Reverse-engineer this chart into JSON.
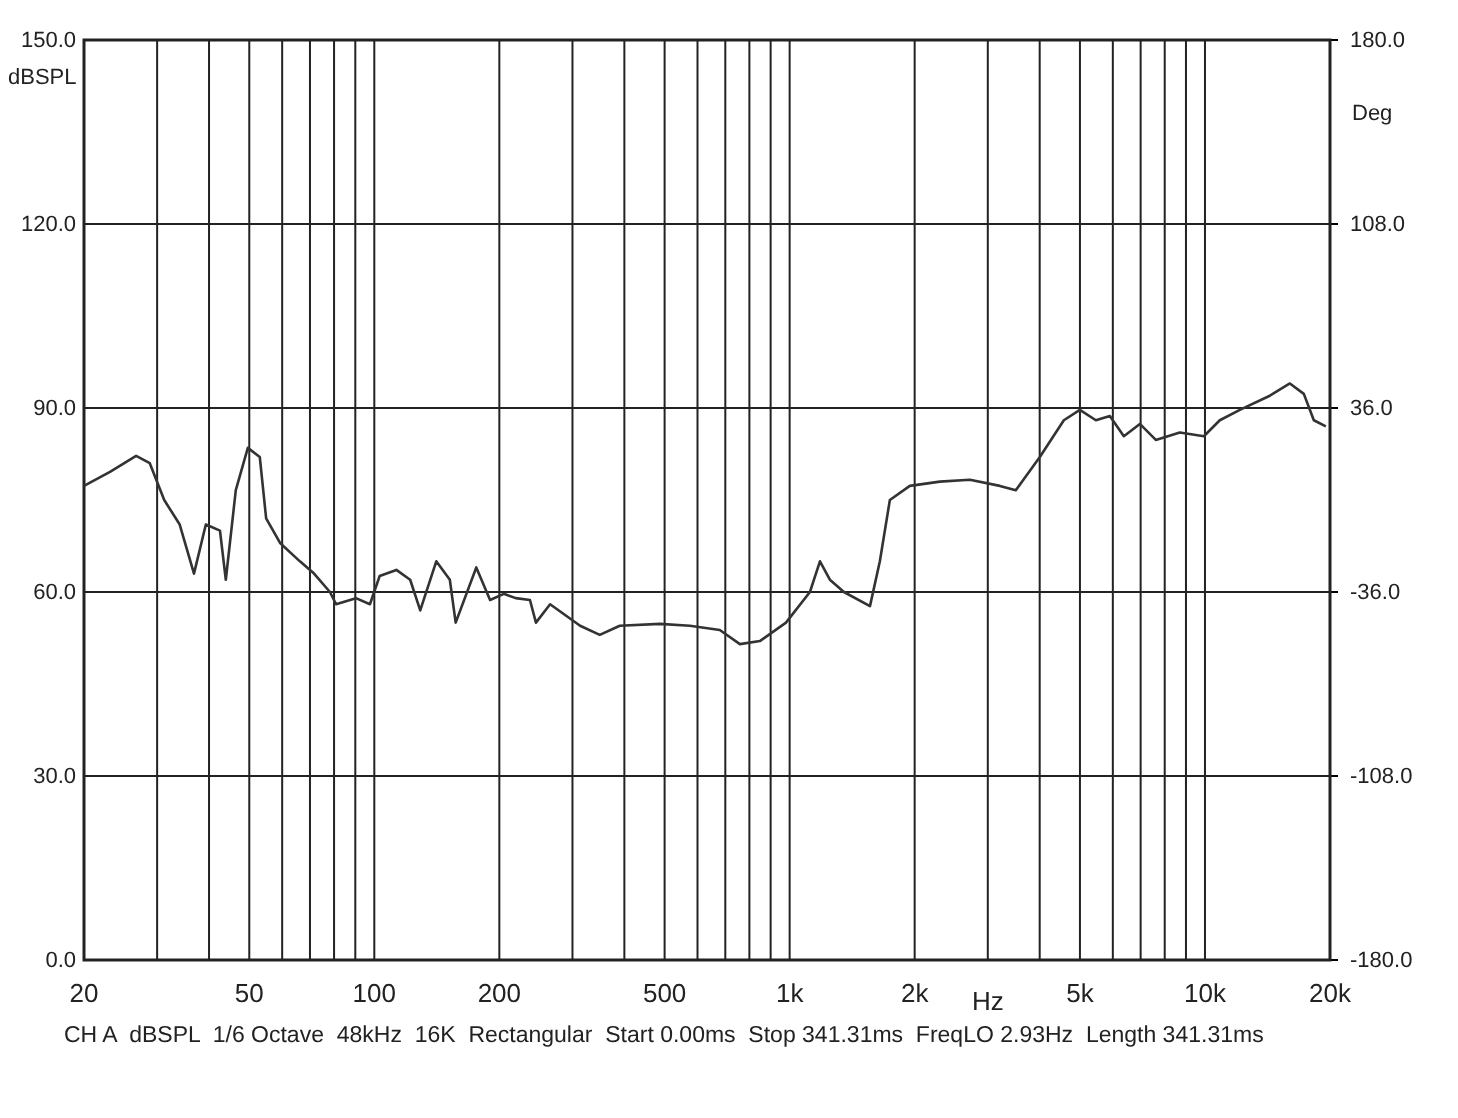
{
  "chart_data": {
    "type": "line",
    "xlabel": "Hz",
    "ylabel": "dBSPL",
    "y2label": "Deg",
    "log": "x",
    "grid": true,
    "marker": "none",
    "line_style": "solid",
    "xlim": [
      20,
      20000
    ],
    "ylim": [
      0,
      150
    ],
    "y2lim": [
      -180,
      180
    ],
    "xticks": [
      20,
      {
        "value": 30,
        "label": null
      },
      {
        "value": 40,
        "label": null
      },
      50,
      {
        "value": 60,
        "label": null
      },
      {
        "value": 70,
        "label": null
      },
      {
        "value": 80,
        "label": null
      },
      {
        "value": 90,
        "label": null
      },
      100,
      200,
      {
        "value": 300,
        "label": null
      },
      {
        "value": 400,
        "label": null
      },
      500,
      {
        "value": 600,
        "label": null
      },
      {
        "value": 700,
        "label": null
      },
      {
        "value": 800,
        "label": null
      },
      {
        "value": 900,
        "label": null
      },
      {
        "value": 1000,
        "label": "1k"
      },
      {
        "value": 2000,
        "label": "2k"
      },
      {
        "value": 3000,
        "label": null
      },
      {
        "value": 4000,
        "label": null
      },
      {
        "value": 5000,
        "label": "5k"
      },
      {
        "value": 6000,
        "label": null
      },
      {
        "value": 7000,
        "label": null
      },
      {
        "value": 8000,
        "label": null
      },
      {
        "value": 9000,
        "label": null
      },
      {
        "value": 10000,
        "label": "10k"
      },
      {
        "value": 20000,
        "label": "20k"
      }
    ],
    "yticks": [
      {
        "value": 0,
        "label": "0.0"
      },
      {
        "value": 30,
        "label": "30.0"
      },
      {
        "value": 60,
        "label": "60.0"
      },
      {
        "value": 90,
        "label": "90.0"
      },
      {
        "value": 120,
        "label": "120.0"
      },
      {
        "value": 150,
        "label": "150.0"
      }
    ],
    "y2ticks": [
      {
        "value": -180,
        "label": "-180.0"
      },
      {
        "value": -108,
        "label": "-108.0"
      },
      {
        "value": -36,
        "label": "-36.0"
      },
      {
        "value": 36,
        "label": "36.0"
      },
      {
        "value": 108,
        "label": "108.0"
      },
      {
        "value": 180,
        "label": "180.0"
      }
    ],
    "series": [
      {
        "color": "#333333",
        "x": [
          20,
          23.1,
          26.7,
          28.8,
          31.2,
          34,
          36.8,
          39.3,
          42.5,
          43.9,
          46.4,
          49.6,
          53,
          54.9,
          59.3,
          66.2,
          71.6,
          78.2,
          80.9,
          90.3,
          97.6,
          103,
          113,
          122,
          129,
          141,
          152,
          157,
          176,
          190,
          205,
          219,
          237,
          245,
          265,
          313,
          349,
          390,
          487,
          575,
          679,
          759,
          848,
          980,
          1119,
          1183,
          1250,
          1351,
          1561,
          1649,
          1743,
          1947,
          2300,
          2716,
          3208,
          3504,
          4003,
          4573,
          4998,
          5462,
          5902,
          6378,
          6969,
          7615,
          8698,
          9938,
          10858,
          12132,
          14326,
          16012,
          17298,
          18284,
          19543
        ],
        "values": [
          77.3,
          79.6,
          82.2,
          81,
          75,
          71,
          63,
          71,
          70,
          62,
          76.6,
          83.5,
          82,
          72,
          68,
          65,
          63,
          60,
          58,
          59,
          58,
          62.6,
          63.6,
          62,
          57,
          65,
          62,
          55,
          64,
          58.7,
          59.7,
          59,
          58.7,
          55,
          58,
          54.5,
          53,
          54.5,
          54.8,
          54.5,
          53.8,
          51.5,
          52,
          55,
          60,
          65,
          62,
          60,
          57.7,
          65,
          75,
          77.3,
          78,
          78.3,
          77.3,
          76.6,
          82,
          88,
          89.7,
          88,
          88.7,
          85.4,
          87.4,
          84.8,
          86,
          85.4,
          88,
          89.7,
          92,
          94,
          92.3,
          88,
          87
        ]
      }
    ],
    "annotations": [
      "CH A  dBSPL  1/6 Octave  48kHz  16K  Rectangular  Start 0.00ms  Stop 341.31ms  FreqLO 2.93Hz  Length 341.31ms"
    ]
  }
}
